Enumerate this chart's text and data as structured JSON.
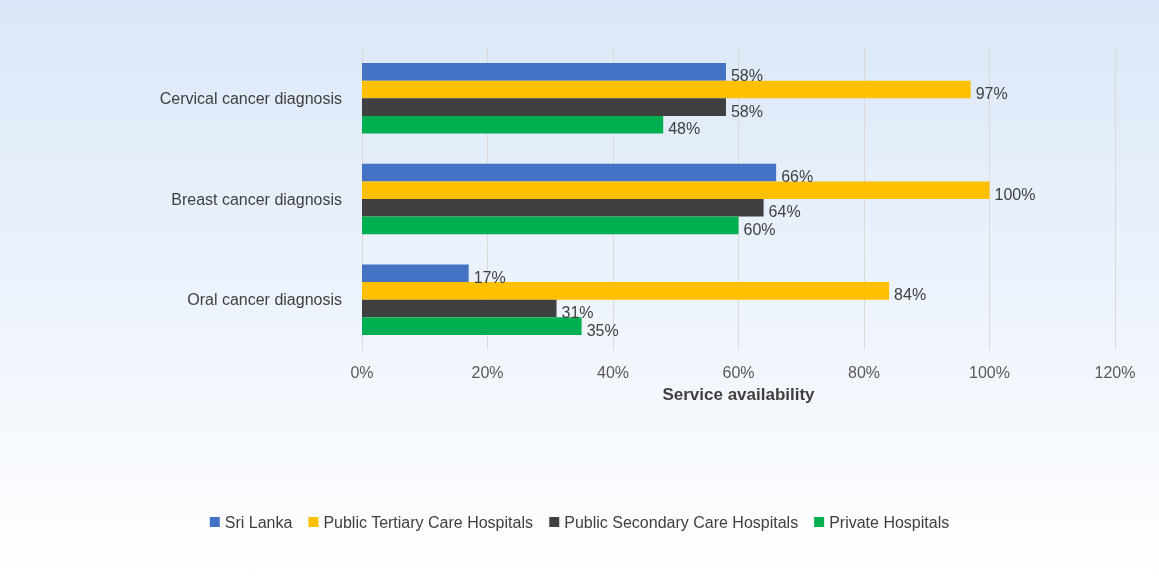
{
  "chart_data": {
    "type": "bar",
    "orientation": "horizontal",
    "xlabel": "Service availability",
    "categories": [
      "Cervical cancer diagnosis",
      "Breast cancer diagnosis",
      "Oral cancer diagnosis"
    ],
    "series": [
      {
        "name": "Sri Lanka",
        "color": "#4472c4",
        "values": [
          58,
          66,
          17
        ],
        "value_labels": [
          "58%",
          "66%",
          "17%"
        ]
      },
      {
        "name": "Public Tertiary Care Hospitals",
        "color": "#ffc000",
        "values": [
          97,
          100,
          84
        ],
        "value_labels": [
          "97%",
          "100%",
          "84%"
        ]
      },
      {
        "name": "Public Secondary Care Hospitals",
        "color": "#404040",
        "values": [
          58,
          64,
          31
        ],
        "value_labels": [
          "58%",
          "64%",
          "31%"
        ]
      },
      {
        "name": "Private Hospitals",
        "color": "#00b050",
        "values": [
          48,
          60,
          35
        ],
        "value_labels": [
          "48%",
          "60%",
          "35%"
        ]
      }
    ],
    "xlim": [
      0,
      120
    ],
    "xticks": [
      {
        "value": 0,
        "label": "0%"
      },
      {
        "value": 20,
        "label": "20%"
      },
      {
        "value": 40,
        "label": "40%"
      },
      {
        "value": 60,
        "label": "60%"
      },
      {
        "value": 80,
        "label": "80%"
      },
      {
        "value": 100,
        "label": "100%"
      },
      {
        "value": 120,
        "label": "120%"
      }
    ],
    "grid": "x",
    "legend": "bottom"
  }
}
